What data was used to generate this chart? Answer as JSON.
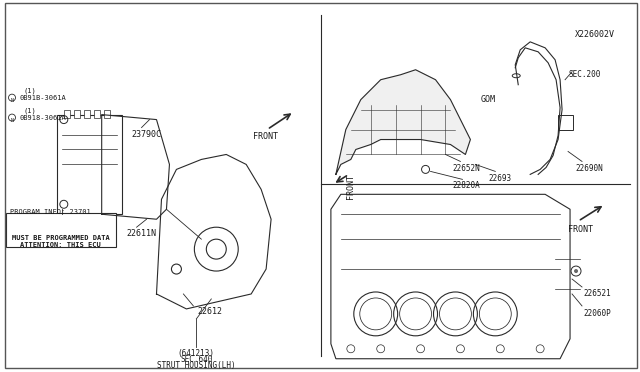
{
  "title": "",
  "diagram_id": "X226002V",
  "background_color": "#ffffff",
  "line_color": "#2a2a2a",
  "text_color": "#1a1a1a",
  "parts": {
    "strut_housing_label": "STRUT HOUSING(LH)\nSEC.640\n(641213)",
    "label_22612": "22612",
    "label_22611N": "22611N",
    "attention_box": "ATTENTION: THIS ECU\nMUST BE PROGRAMMED DATA",
    "program_info": "PROGRAM INFO: 23701",
    "label_23790C": "23790C",
    "label_0B918_3061A": "Ô0B918-3061A\n(1)",
    "label_0B91B_3061A": "Ô0B91B-3061A\n(1)",
    "front_label_left": "FRONT",
    "label_22060P": "22060P",
    "label_226521": "226521",
    "front_label_right_top": "FRONT",
    "label_22820A": "22820A",
    "label_22693": "22693",
    "label_22652N": "22652N",
    "label_22690N": "22690N",
    "front_label_right_bot": "FRONT",
    "label_GOM": "GOM",
    "label_SEC200": "SEC.200",
    "diagram_code": "X226002V"
  }
}
